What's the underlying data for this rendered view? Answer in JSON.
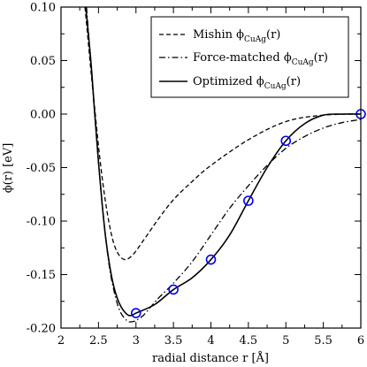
{
  "chart_data": {
    "type": "line",
    "xlabel": "radial distance r [Å]",
    "ylabel": "ϕ(r) [eV]",
    "xlim": [
      2,
      6
    ],
    "ylim": [
      -0.2,
      0.1
    ],
    "x_ticks": [
      "2",
      "2.5",
      "3",
      "3.5",
      "4",
      "4.5",
      "5",
      "5.5",
      "6"
    ],
    "y_ticks": [
      "0.10",
      "0.05",
      "0.00",
      "-0.05",
      "-0.10",
      "-0.15",
      "-0.20"
    ],
    "grid": false,
    "legend_position": "top-right",
    "series": [
      {
        "name": "Mishin ϕCuAg(r)",
        "name_main": "Mishin ϕ",
        "name_sub": "CuAg",
        "name_tail": "(r)",
        "style": "dashed",
        "x": [
          2.32,
          2.36,
          2.4,
          2.45,
          2.5,
          2.55,
          2.6,
          2.65,
          2.7,
          2.75,
          2.8,
          2.85,
          2.9,
          2.95,
          3.0,
          3.1,
          3.2,
          3.3,
          3.5,
          3.75,
          4.0,
          4.5,
          5.0,
          5.5,
          6.0
        ],
        "y": [
          0.1,
          0.07,
          0.04,
          0.005,
          -0.03,
          -0.06,
          -0.085,
          -0.105,
          -0.12,
          -0.129,
          -0.134,
          -0.136,
          -0.135,
          -0.132,
          -0.128,
          -0.118,
          -0.108,
          -0.098,
          -0.08,
          -0.063,
          -0.048,
          -0.024,
          -0.007,
          -0.001,
          0.0
        ]
      },
      {
        "name": "Force-matched ϕCuAg(r)",
        "name_main": "Force-matched ϕ",
        "name_sub": "CuAg",
        "name_tail": "(r)",
        "style": "dash-dot",
        "x": [
          2.34,
          2.4,
          2.45,
          2.5,
          2.55,
          2.6,
          2.65,
          2.7,
          2.75,
          2.8,
          2.85,
          2.9,
          2.95,
          3.0,
          3.1,
          3.2,
          3.3,
          3.5,
          3.75,
          4.0,
          4.25,
          4.5,
          4.75,
          5.0,
          5.25,
          5.5,
          5.75,
          6.0
        ],
        "y": [
          0.1,
          0.045,
          0.0,
          -0.045,
          -0.085,
          -0.118,
          -0.145,
          -0.163,
          -0.177,
          -0.186,
          -0.191,
          -0.194,
          -0.194,
          -0.193,
          -0.188,
          -0.18,
          -0.172,
          -0.158,
          -0.138,
          -0.113,
          -0.088,
          -0.067,
          -0.048,
          -0.032,
          -0.021,
          -0.013,
          -0.008,
          -0.005
        ]
      },
      {
        "name": "Optimized ϕCuAg(r)",
        "name_main": "Optimized ϕ",
        "name_sub": "CuAg",
        "name_tail": "(r)",
        "style": "solid",
        "x": [
          2.33,
          2.4,
          2.45,
          2.5,
          2.55,
          2.6,
          2.65,
          2.7,
          2.75,
          2.8,
          2.85,
          2.9,
          2.95,
          3.0,
          3.25,
          3.5,
          3.75,
          4.0,
          4.25,
          4.5,
          4.75,
          5.0,
          5.25,
          5.5,
          5.75,
          6.0
        ],
        "y": [
          0.1,
          0.048,
          0.0,
          -0.045,
          -0.085,
          -0.118,
          -0.142,
          -0.16,
          -0.172,
          -0.18,
          -0.185,
          -0.188,
          -0.188,
          -0.186,
          -0.178,
          -0.164,
          -0.153,
          -0.136,
          -0.113,
          -0.081,
          -0.05,
          -0.025,
          -0.009,
          -0.001,
          0.0,
          0.0
        ]
      }
    ],
    "markers": {
      "shape": "circle",
      "color": "#0000ff",
      "x": [
        3.0,
        3.5,
        4.0,
        4.5,
        5.0,
        6.0
      ],
      "y": [
        -0.186,
        -0.164,
        -0.136,
        -0.081,
        -0.025,
        0.0
      ]
    }
  }
}
